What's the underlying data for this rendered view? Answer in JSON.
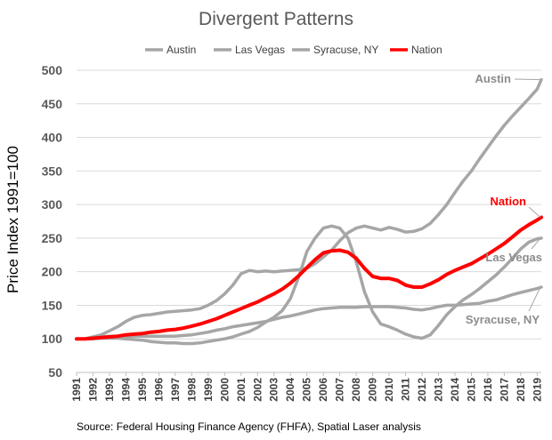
{
  "chart_data": {
    "type": "line",
    "title": "Divergent Patterns",
    "ylabel": "Price Index 1991=100",
    "xlabel": "",
    "source": "Source: Federal Housing Finance Agency (FHFA), Spatial Laser analysis",
    "ylim": [
      50,
      500
    ],
    "xlim": [
      1991,
      2019.25
    ],
    "yticks": [
      50,
      100,
      150,
      200,
      250,
      300,
      350,
      400,
      450,
      500
    ],
    "xticks": [
      "1991",
      "1992",
      "1993",
      "1994",
      "1995",
      "1996",
      "1997",
      "1998",
      "1999",
      "2000",
      "2001",
      "2002",
      "2003",
      "2004",
      "2005",
      "2006",
      "2007",
      "2008",
      "2009",
      "2010",
      "2011",
      "2012",
      "2013",
      "2014",
      "2015",
      "2016",
      "2017",
      "2018",
      "2019"
    ],
    "grid": true,
    "legend_position": "top",
    "legend": [
      "Austin",
      "Las Vegas",
      "Syracuse, NY",
      "Nation"
    ],
    "series": [
      {
        "name": "Austin",
        "color": "#a6a6a6",
        "label": "Austin",
        "points": [
          [
            1991,
            100
          ],
          [
            1991.5,
            100
          ],
          [
            1992,
            103
          ],
          [
            1992.5,
            106
          ],
          [
            1993,
            112
          ],
          [
            1993.5,
            118
          ],
          [
            1994,
            126
          ],
          [
            1994.5,
            132
          ],
          [
            1995,
            135
          ],
          [
            1995.5,
            136
          ],
          [
            1996,
            138
          ],
          [
            1996.5,
            140
          ],
          [
            1997,
            141
          ],
          [
            1997.5,
            142
          ],
          [
            1998,
            143
          ],
          [
            1998.5,
            145
          ],
          [
            1999,
            150
          ],
          [
            1999.5,
            157
          ],
          [
            2000,
            167
          ],
          [
            2000.5,
            180
          ],
          [
            2001,
            197
          ],
          [
            2001.5,
            202
          ],
          [
            2002,
            200
          ],
          [
            2002.5,
            201
          ],
          [
            2003,
            200
          ],
          [
            2003.5,
            201
          ],
          [
            2004,
            202
          ],
          [
            2004.5,
            203
          ],
          [
            2005,
            205
          ],
          [
            2005.5,
            212
          ],
          [
            2006,
            222
          ],
          [
            2006.5,
            232
          ],
          [
            2007,
            246
          ],
          [
            2007.5,
            258
          ],
          [
            2008,
            265
          ],
          [
            2008.5,
            268
          ],
          [
            2009,
            265
          ],
          [
            2009.5,
            262
          ],
          [
            2010,
            266
          ],
          [
            2010.5,
            263
          ],
          [
            2011,
            259
          ],
          [
            2011.5,
            260
          ],
          [
            2012,
            264
          ],
          [
            2012.5,
            272
          ],
          [
            2013,
            285
          ],
          [
            2013.5,
            300
          ],
          [
            2014,
            318
          ],
          [
            2014.5,
            335
          ],
          [
            2015,
            350
          ],
          [
            2015.5,
            368
          ],
          [
            2016,
            385
          ],
          [
            2016.5,
            402
          ],
          [
            2017,
            418
          ],
          [
            2017.5,
            432
          ],
          [
            2018,
            445
          ],
          [
            2018.5,
            458
          ],
          [
            2019,
            472
          ],
          [
            2019.25,
            486
          ]
        ]
      },
      {
        "name": "Las Vegas",
        "color": "#a6a6a6",
        "label": "Las Vegas",
        "points": [
          [
            1991,
            100
          ],
          [
            1991.5,
            100
          ],
          [
            1992,
            100
          ],
          [
            1992.5,
            101
          ],
          [
            1993,
            101
          ],
          [
            1993.5,
            101
          ],
          [
            1994,
            100
          ],
          [
            1994.5,
            99
          ],
          [
            1995,
            98
          ],
          [
            1995.5,
            96
          ],
          [
            1996,
            95
          ],
          [
            1996.5,
            94
          ],
          [
            1997,
            94
          ],
          [
            1997.5,
            93
          ],
          [
            1998,
            93
          ],
          [
            1998.5,
            94
          ],
          [
            1999,
            96
          ],
          [
            1999.5,
            98
          ],
          [
            2000,
            100
          ],
          [
            2000.5,
            103
          ],
          [
            2001,
            107
          ],
          [
            2001.5,
            111
          ],
          [
            2002,
            117
          ],
          [
            2002.5,
            125
          ],
          [
            2003,
            132
          ],
          [
            2003.5,
            142
          ],
          [
            2004,
            160
          ],
          [
            2004.5,
            192
          ],
          [
            2005,
            230
          ],
          [
            2005.5,
            250
          ],
          [
            2006,
            265
          ],
          [
            2006.5,
            268
          ],
          [
            2007,
            265
          ],
          [
            2007.5,
            250
          ],
          [
            2008,
            215
          ],
          [
            2008.5,
            170
          ],
          [
            2009,
            140
          ],
          [
            2009.5,
            122
          ],
          [
            2010,
            118
          ],
          [
            2010.5,
            113
          ],
          [
            2011,
            107
          ],
          [
            2011.5,
            103
          ],
          [
            2012,
            101
          ],
          [
            2012.5,
            106
          ],
          [
            2013,
            120
          ],
          [
            2013.5,
            136
          ],
          [
            2014,
            148
          ],
          [
            2014.5,
            158
          ],
          [
            2015,
            166
          ],
          [
            2015.5,
            175
          ],
          [
            2016,
            185
          ],
          [
            2016.5,
            195
          ],
          [
            2017,
            207
          ],
          [
            2017.5,
            220
          ],
          [
            2018,
            234
          ],
          [
            2018.5,
            244
          ],
          [
            2019,
            249
          ],
          [
            2019.25,
            250
          ]
        ]
      },
      {
        "name": "Syracuse, NY",
        "color": "#a6a6a6",
        "label": "Syracuse, NY",
        "points": [
          [
            1991,
            100
          ],
          [
            1991.5,
            100
          ],
          [
            1992,
            102
          ],
          [
            1992.5,
            103
          ],
          [
            1993,
            104
          ],
          [
            1993.5,
            104
          ],
          [
            1994,
            104
          ],
          [
            1994.5,
            104
          ],
          [
            1995,
            104
          ],
          [
            1995.5,
            104
          ],
          [
            1996,
            104
          ],
          [
            1996.5,
            104
          ],
          [
            1997,
            104
          ],
          [
            1997.5,
            105
          ],
          [
            1998,
            106
          ],
          [
            1998.5,
            108
          ],
          [
            1999,
            110
          ],
          [
            1999.5,
            113
          ],
          [
            2000,
            115
          ],
          [
            2000.5,
            118
          ],
          [
            2001,
            120
          ],
          [
            2001.5,
            122
          ],
          [
            2002,
            124
          ],
          [
            2002.5,
            126
          ],
          [
            2003,
            129
          ],
          [
            2003.5,
            132
          ],
          [
            2004,
            134
          ],
          [
            2004.5,
            137
          ],
          [
            2005,
            140
          ],
          [
            2005.5,
            143
          ],
          [
            2006,
            145
          ],
          [
            2006.5,
            146
          ],
          [
            2007,
            147
          ],
          [
            2007.5,
            147
          ],
          [
            2008,
            147
          ],
          [
            2008.5,
            148
          ],
          [
            2009,
            148
          ],
          [
            2009.5,
            148
          ],
          [
            2010,
            148
          ],
          [
            2010.5,
            147
          ],
          [
            2011,
            146
          ],
          [
            2011.5,
            144
          ],
          [
            2012,
            143
          ],
          [
            2012.5,
            145
          ],
          [
            2013,
            148
          ],
          [
            2013.5,
            150
          ],
          [
            2014,
            150
          ],
          [
            2014.5,
            151
          ],
          [
            2015,
            152
          ],
          [
            2015.5,
            153
          ],
          [
            2016,
            156
          ],
          [
            2016.5,
            158
          ],
          [
            2017,
            162
          ],
          [
            2017.5,
            166
          ],
          [
            2018,
            169
          ],
          [
            2018.5,
            172
          ],
          [
            2019,
            175
          ],
          [
            2019.25,
            177
          ]
        ]
      },
      {
        "name": "Nation",
        "color": "#ff0000",
        "label": "Nation",
        "points": [
          [
            1991,
            100
          ],
          [
            1991.5,
            100
          ],
          [
            1992,
            101
          ],
          [
            1992.5,
            102
          ],
          [
            1993,
            103
          ],
          [
            1993.5,
            104
          ],
          [
            1994,
            106
          ],
          [
            1994.5,
            107
          ],
          [
            1995,
            108
          ],
          [
            1995.5,
            110
          ],
          [
            1996,
            111
          ],
          [
            1996.5,
            113
          ],
          [
            1997,
            114
          ],
          [
            1997.5,
            116
          ],
          [
            1998,
            119
          ],
          [
            1998.5,
            122
          ],
          [
            1999,
            126
          ],
          [
            1999.5,
            130
          ],
          [
            2000,
            135
          ],
          [
            2000.5,
            140
          ],
          [
            2001,
            145
          ],
          [
            2001.5,
            150
          ],
          [
            2002,
            155
          ],
          [
            2002.5,
            161
          ],
          [
            2003,
            167
          ],
          [
            2003.5,
            174
          ],
          [
            2004,
            183
          ],
          [
            2004.5,
            194
          ],
          [
            2005,
            206
          ],
          [
            2005.5,
            218
          ],
          [
            2006,
            228
          ],
          [
            2006.5,
            231
          ],
          [
            2007,
            232
          ],
          [
            2007.5,
            229
          ],
          [
            2008,
            220
          ],
          [
            2008.5,
            205
          ],
          [
            2009,
            193
          ],
          [
            2009.5,
            190
          ],
          [
            2010,
            190
          ],
          [
            2010.5,
            187
          ],
          [
            2011,
            180
          ],
          [
            2011.5,
            177
          ],
          [
            2012,
            177
          ],
          [
            2012.5,
            182
          ],
          [
            2013,
            188
          ],
          [
            2013.5,
            196
          ],
          [
            2014,
            202
          ],
          [
            2014.5,
            207
          ],
          [
            2015,
            212
          ],
          [
            2015.5,
            219
          ],
          [
            2016,
            226
          ],
          [
            2016.5,
            234
          ],
          [
            2017,
            242
          ],
          [
            2017.5,
            252
          ],
          [
            2018,
            262
          ],
          [
            2018.5,
            270
          ],
          [
            2019,
            277
          ],
          [
            2019.25,
            281
          ]
        ]
      }
    ]
  }
}
